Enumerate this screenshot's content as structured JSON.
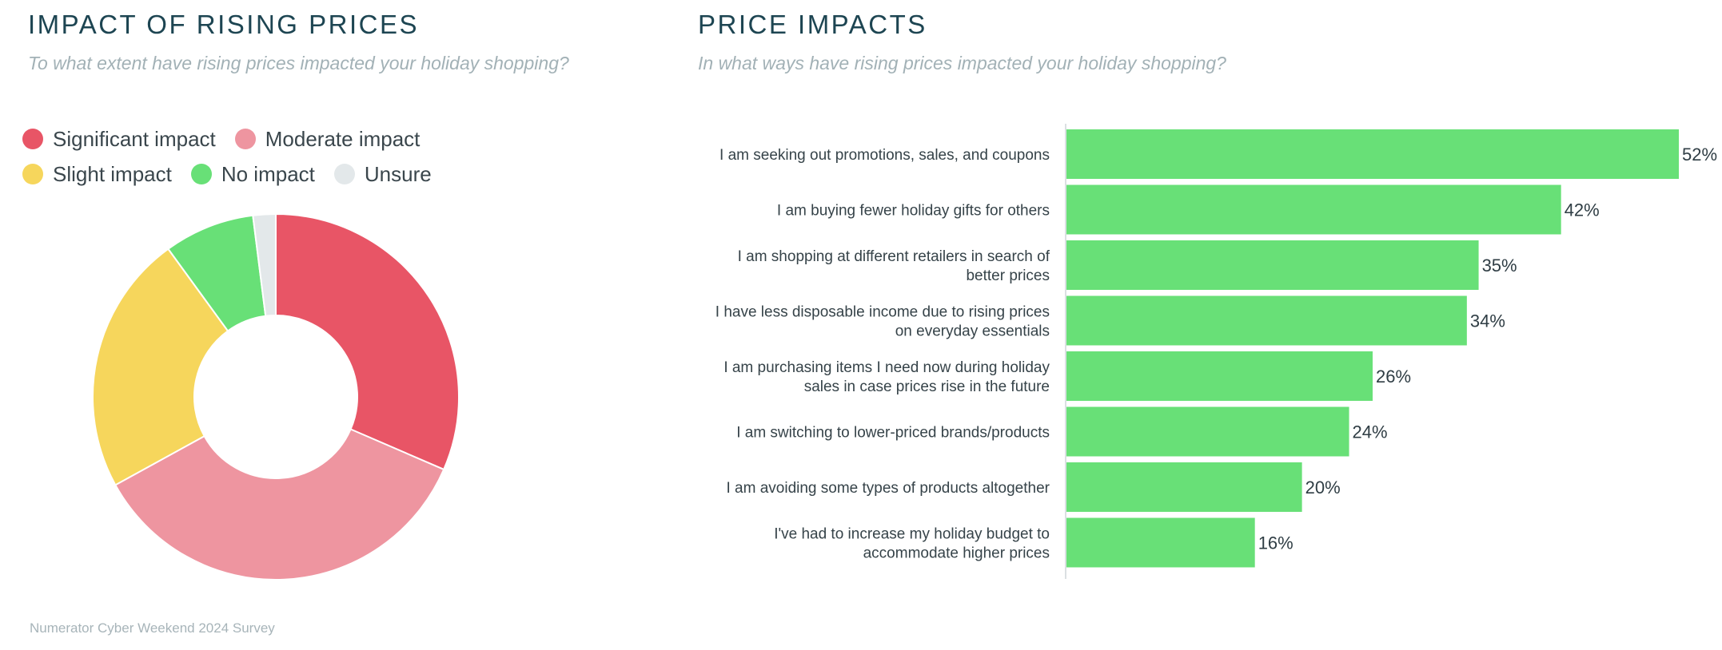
{
  "left": {
    "title": "IMPACT OF RISING PRICES",
    "subtitle": "To what extent have rising prices impacted your holiday shopping?"
  },
  "right": {
    "title": "PRICE IMPACTS",
    "subtitle": "In what ways have rising prices impacted your holiday shopping?"
  },
  "source": "Numerator Cyber Weekend 2024 Survey",
  "colors": {
    "significant": "#e85566",
    "moderate": "#ee95a0",
    "slight": "#f6d65c",
    "none": "#68e077",
    "unsure": "#e3e8ea",
    "bar": "#68e077"
  },
  "chart_data": [
    {
      "type": "pie",
      "title": "IMPACT OF RISING PRICES",
      "subtitle": "To what extent have rising prices impacted your holiday shopping?",
      "donut": true,
      "legend": "top",
      "labels": [
        "Significant impact",
        "Moderate impact",
        "Slight impact",
        "No impact",
        "Unsure"
      ],
      "values": [
        31.5,
        35.5,
        23,
        8,
        2
      ],
      "colors": [
        "#e85566",
        "#ee95a0",
        "#f6d65c",
        "#68e077",
        "#e3e8ea"
      ]
    },
    {
      "type": "bar",
      "orientation": "horizontal",
      "title": "PRICE IMPACTS",
      "subtitle": "In what ways have rising prices impacted your holiday shopping?",
      "categories": [
        "I am seeking out promotions, sales, and coupons",
        "I am buying fewer holiday gifts for others",
        "I am shopping at different retailers in search of better prices",
        "I have less disposable income due to rising prices on everyday essentials",
        "I am purchasing items I need now during holiday sales in case prices rise in the future",
        "I am switching to lower-priced brands/products",
        "I am avoiding some types of products altogether",
        "I've had to increase my holiday budget to accommodate higher prices"
      ],
      "category_lines": [
        [
          "I am seeking out promotions, sales, and coupons"
        ],
        [
          "I am buying fewer holiday gifts for others"
        ],
        [
          "I am shopping at different retailers in search of",
          "better prices"
        ],
        [
          "I have less disposable income due to rising prices",
          "on everyday essentials"
        ],
        [
          "I am purchasing items I need now during holiday",
          "sales in case prices rise in the future"
        ],
        [
          "I am switching to lower-priced brands/products"
        ],
        [
          "I am avoiding some types of products altogether"
        ],
        [
          "I've had to increase my holiday budget to",
          "accommodate higher prices"
        ]
      ],
      "values": [
        52,
        42,
        35,
        34,
        26,
        24,
        20,
        16
      ],
      "value_labels": [
        "52%",
        "42%",
        "35%",
        "34%",
        "26%",
        "24%",
        "20%",
        "16%"
      ],
      "unit": "%",
      "color": "#68e077",
      "grid": false
    }
  ]
}
